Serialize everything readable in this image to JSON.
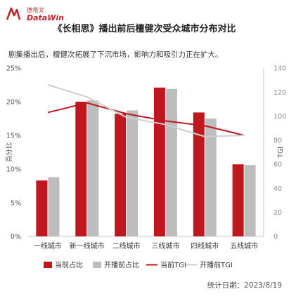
{
  "brand": {
    "cn": "德塔文",
    "en": "DataWin",
    "color": "#c0282d"
  },
  "title": "《长相思》播出前后檀健次受众城市分布对比",
  "subtitle": "剧集播出后，檀健次拓展了下沉市场，影响力和吸引力正在扩大。",
  "footer": "统计日期：2023/8/19",
  "chart_data": {
    "type": "bar",
    "categories": [
      "一线城市",
      "新一线城市",
      "二线城市",
      "三线城市",
      "四线城市",
      "五线城市"
    ],
    "series": [
      {
        "name": "当前占比",
        "kind": "bar",
        "axis": "left",
        "color": "#c0161d",
        "values": [
          8.3,
          20.0,
          18.2,
          22.1,
          18.4,
          10.7
        ]
      },
      {
        "name": "开播前占比",
        "kind": "bar",
        "axis": "left",
        "color": "#bdbdbd",
        "values": [
          8.8,
          20.2,
          18.7,
          21.9,
          17.5,
          10.6
        ]
      },
      {
        "name": "当前TGI",
        "kind": "line",
        "axis": "right",
        "color": "#c0161d",
        "values": [
          103,
          111,
          102,
          96,
          92,
          84
        ]
      },
      {
        "name": "开播前TGI",
        "kind": "line",
        "axis": "right",
        "color": "#cfcfcf",
        "values": [
          126,
          116,
          99,
          93,
          83,
          84
        ]
      }
    ],
    "ylabel_left": "百分比",
    "ylabel_right": "TGI",
    "ylim_left": [
      0,
      25
    ],
    "ylim_right": [
      0,
      140
    ],
    "yticks_left": [
      "0%",
      "5%",
      "10%",
      "15%",
      "20%",
      "25%"
    ],
    "yticks_left_values": [
      0,
      5,
      10,
      15,
      20,
      25
    ],
    "yticks_right": [
      "0",
      "20",
      "40",
      "60",
      "80",
      "100",
      "120",
      "140"
    ],
    "yticks_right_values": [
      0,
      20,
      40,
      60,
      80,
      100,
      120,
      140
    ],
    "legend_position": "bottom",
    "grid": false
  }
}
